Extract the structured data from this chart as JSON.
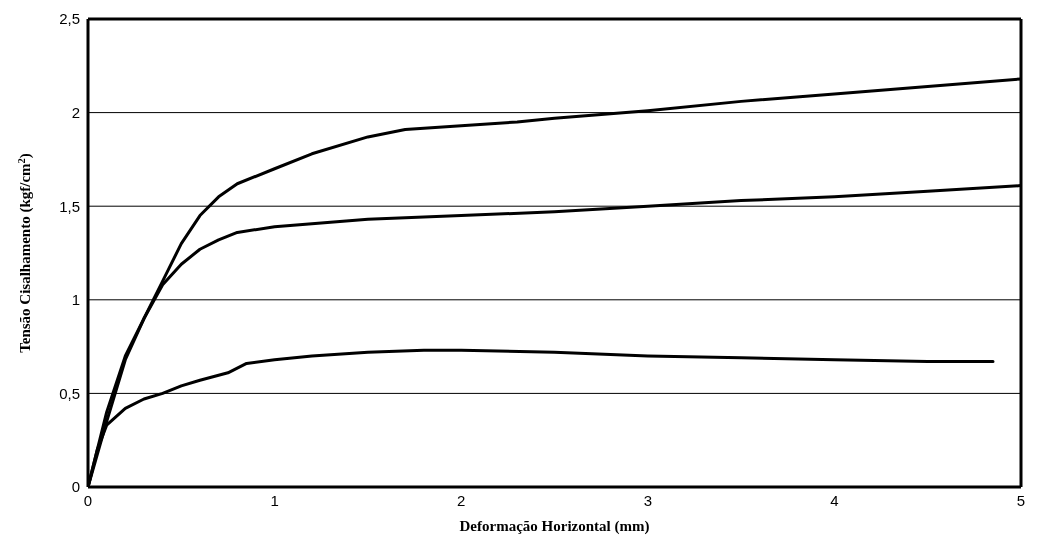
{
  "chart_data": {
    "type": "line",
    "xlabel": "Deformação Horizontal (mm)",
    "ylabel": "Tensão Cisalhamento (kgf/cm$^{2}$)",
    "xlim": [
      0,
      5
    ],
    "xticks": [
      0,
      1,
      2,
      3,
      4,
      5
    ],
    "ylim": [
      0,
      2.5
    ],
    "yticks": [
      0,
      {
        "value": 0.5,
        "label": "0,5"
      },
      1,
      {
        "value": 1.5,
        "label": "1,5"
      },
      2,
      {
        "value": 2.5,
        "label": "2,5"
      }
    ],
    "grid": "y",
    "marker": "none",
    "line_style": "solid",
    "series": [
      {
        "color": "#000000",
        "x": [
          0,
          0.1,
          0.2,
          0.3,
          0.4,
          0.5,
          0.6,
          0.7,
          0.8,
          1,
          1.2,
          1.5,
          1.7,
          2,
          2.3,
          2.5,
          3,
          3.5,
          4,
          4.5,
          5
        ],
        "values": [
          0,
          0.4,
          0.7,
          0.9,
          1.1,
          1.3,
          1.45,
          1.55,
          1.62,
          1.7,
          1.78,
          1.87,
          1.91,
          1.93,
          1.95,
          1.97,
          2.01,
          2.06,
          2.1,
          2.14,
          2.18
        ]
      },
      {
        "color": "#000000",
        "x": [
          0,
          0.1,
          0.2,
          0.3,
          0.4,
          0.5,
          0.6,
          0.7,
          0.8,
          1,
          1.5,
          2,
          2.5,
          3,
          3.5,
          4,
          4.5,
          5
        ],
        "values": [
          0,
          0.35,
          0.68,
          0.9,
          1.08,
          1.19,
          1.27,
          1.32,
          1.36,
          1.39,
          1.43,
          1.45,
          1.47,
          1.5,
          1.53,
          1.55,
          1.58,
          1.61
        ]
      },
      {
        "color": "#000000",
        "x": [
          0,
          0.05,
          0.1,
          0.2,
          0.3,
          0.4,
          0.5,
          0.6,
          0.75,
          0.85,
          1,
          1.2,
          1.5,
          1.8,
          2,
          2.5,
          3,
          3.5,
          4,
          4.5,
          4.85
        ],
        "values": [
          0,
          0.2,
          0.33,
          0.42,
          0.47,
          0.5,
          0.54,
          0.57,
          0.61,
          0.66,
          0.68,
          0.7,
          0.72,
          0.73,
          0.73,
          0.72,
          0.7,
          0.69,
          0.68,
          0.67,
          0.67
        ]
      }
    ]
  }
}
